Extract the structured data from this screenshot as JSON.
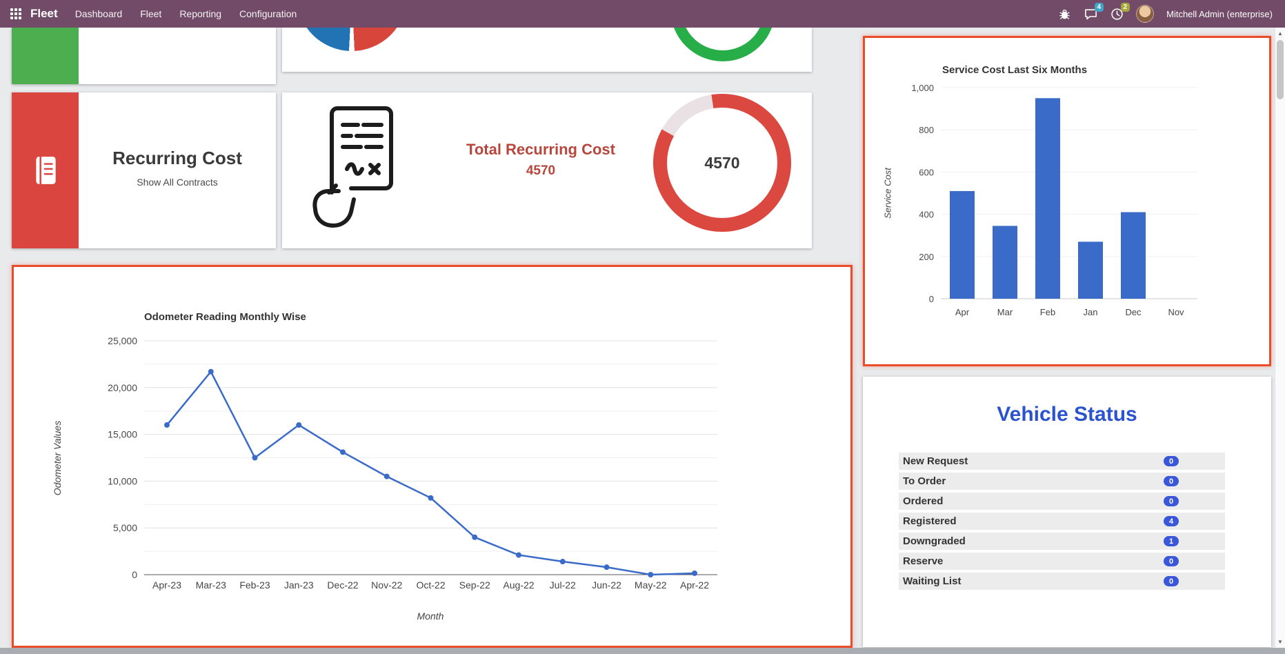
{
  "colors": {
    "navbar_bg": "#714B67",
    "messages_badge": "#3FA5C7",
    "activities_badge": "#A6A73B",
    "green_accent": "#4CAE4F",
    "green_donut": "#27AE49",
    "red_accent": "#DA453F",
    "red_border": "#EA4C2A",
    "dark_red_text": "#B8463C",
    "donut_red": "#DB4840",
    "title_blue": "#2B53CF",
    "badge_blue": "#3957D8"
  },
  "navbar": {
    "app_title": "Fleet",
    "menu_items": [
      "Dashboard",
      "Fleet",
      "Reporting",
      "Configuration"
    ],
    "user_name": "Mitchell Admin (enterprise)",
    "badges": {
      "messages": "4",
      "activities": "2"
    },
    "icons": [
      "apps-grid-icon",
      "bug-icon",
      "chat-icon",
      "clock-icon",
      "avatar"
    ]
  },
  "recurring_card": {
    "title": "Recurring Cost",
    "link": "Show All Contracts",
    "icon": "journal-book-icon"
  },
  "total_recurring_card": {
    "title": "Total Recurring Cost",
    "value": "4570",
    "donut_value": "4570",
    "donut_percent": 86,
    "icon": "contract-document-icon"
  },
  "vehicle_status": {
    "title": "Vehicle Status",
    "rows": [
      {
        "label": "New Request",
        "count": "0"
      },
      {
        "label": "To Order",
        "count": "0"
      },
      {
        "label": "Ordered",
        "count": "0"
      },
      {
        "label": "Registered",
        "count": "4"
      },
      {
        "label": "Downgraded",
        "count": "1"
      },
      {
        "label": "Reserve",
        "count": "0"
      },
      {
        "label": "Waiting List",
        "count": "0"
      }
    ]
  },
  "chart_data": [
    {
      "type": "bar",
      "title": "Service Cost Last Six Months",
      "xlabel": "",
      "ylabel": "Service Cost",
      "categories": [
        "Apr",
        "Mar",
        "Feb",
        "Jan",
        "Dec",
        "Nov"
      ],
      "values": [
        510,
        345,
        950,
        270,
        410,
        0
      ],
      "ylim": [
        0,
        1000
      ],
      "yticks": [
        0,
        200,
        400,
        600,
        800,
        1000
      ],
      "bar_color": "#3A6BC9",
      "grid": true,
      "legend": "none"
    },
    {
      "type": "line",
      "title": "Odometer Reading Monthly Wise",
      "xlabel": "Month",
      "ylabel": "Odometer Values",
      "categories": [
        "Apr-23",
        "Mar-23",
        "Feb-23",
        "Jan-23",
        "Dec-22",
        "Nov-22",
        "Oct-22",
        "Sep-22",
        "Aug-22",
        "Jul-22",
        "Jun-22",
        "May-22",
        "Apr-22"
      ],
      "values": [
        16000,
        21700,
        12500,
        16000,
        13100,
        10500,
        8200,
        4000,
        2100,
        1400,
        800,
        0,
        150
      ],
      "ylim": [
        0,
        25000
      ],
      "yticks": [
        0,
        5000,
        10000,
        15000,
        20000,
        25000
      ],
      "minor_gridlines": true,
      "line_color": "#3A6BC9",
      "grid": true,
      "legend": "none"
    }
  ],
  "scrollbar": {
    "up_arrow": "▲",
    "down_arrow": "▼"
  }
}
